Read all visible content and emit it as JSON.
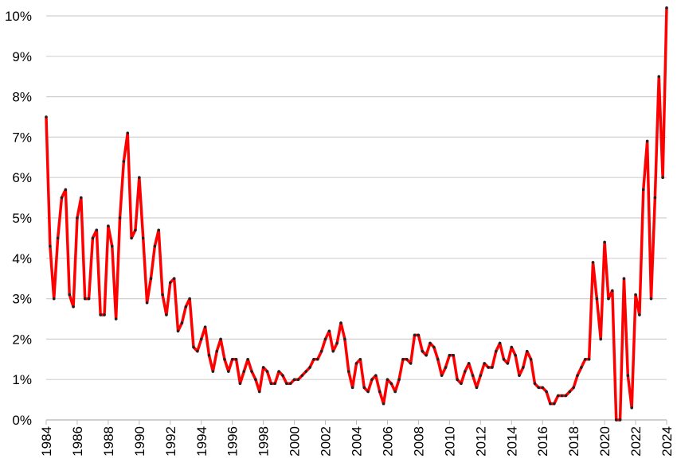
{
  "chart_data": {
    "type": "line",
    "x": [
      1984,
      1984.25,
      1984.5,
      1984.75,
      1985,
      1985.25,
      1985.5,
      1985.75,
      1986,
      1986.25,
      1986.5,
      1986.75,
      1987,
      1987.25,
      1987.5,
      1987.75,
      1988,
      1988.25,
      1988.5,
      1988.75,
      1989,
      1989.25,
      1989.5,
      1989.75,
      1990,
      1990.25,
      1990.5,
      1990.75,
      1991,
      1991.25,
      1991.5,
      1991.75,
      1992,
      1992.25,
      1992.5,
      1992.75,
      1993,
      1993.25,
      1993.5,
      1993.75,
      1994,
      1994.25,
      1994.5,
      1994.75,
      1995,
      1995.25,
      1995.5,
      1995.75,
      1996,
      1996.25,
      1996.5,
      1996.75,
      1997,
      1997.25,
      1997.5,
      1997.75,
      1998,
      1998.25,
      1998.5,
      1998.75,
      1999,
      1999.25,
      1999.5,
      1999.75,
      2000,
      2000.25,
      2000.5,
      2000.75,
      2001,
      2001.25,
      2001.5,
      2001.75,
      2002,
      2002.25,
      2002.5,
      2002.75,
      2003,
      2003.25,
      2003.5,
      2003.75,
      2004,
      2004.25,
      2004.5,
      2004.75,
      2005,
      2005.25,
      2005.5,
      2005.75,
      2006,
      2006.25,
      2006.5,
      2006.75,
      2007,
      2007.25,
      2007.5,
      2007.75,
      2008,
      2008.25,
      2008.5,
      2008.75,
      2009,
      2009.25,
      2009.5,
      2009.75,
      2010,
      2010.25,
      2010.5,
      2010.75,
      2011,
      2011.25,
      2011.5,
      2011.75,
      2012,
      2012.25,
      2012.5,
      2012.75,
      2013,
      2013.25,
      2013.5,
      2013.75,
      2014,
      2014.25,
      2014.5,
      2014.75,
      2015,
      2015.25,
      2015.5,
      2015.75,
      2016,
      2016.25,
      2016.5,
      2016.75,
      2017,
      2017.25,
      2017.5,
      2017.75,
      2018,
      2018.25,
      2018.5,
      2018.75,
      2019,
      2019.25,
      2019.5,
      2019.75,
      2020,
      2020.25,
      2020.5,
      2020.75,
      2021,
      2021.25,
      2021.5,
      2021.75,
      2022,
      2022.25,
      2022.5,
      2022.75,
      2023,
      2023.25,
      2023.5,
      2023.75,
      2024
    ],
    "series": [
      {
        "color": "#ff0000",
        "marker_color": "#222222",
        "values": [
          7.5,
          4.3,
          3.0,
          4.5,
          5.5,
          5.7,
          3.1,
          2.8,
          5.0,
          5.5,
          3.0,
          3.0,
          4.5,
          4.7,
          2.6,
          2.6,
          4.8,
          4.3,
          2.5,
          5.0,
          6.4,
          7.1,
          4.5,
          4.7,
          6.0,
          4.5,
          2.9,
          3.5,
          4.3,
          4.7,
          3.1,
          2.6,
          3.4,
          3.5,
          2.2,
          2.4,
          2.8,
          3.0,
          1.8,
          1.7,
          2.0,
          2.3,
          1.6,
          1.2,
          1.7,
          2.0,
          1.5,
          1.2,
          1.5,
          1.5,
          0.9,
          1.2,
          1.5,
          1.2,
          1.0,
          0.7,
          1.3,
          1.2,
          0.9,
          0.9,
          1.2,
          1.1,
          0.9,
          0.9,
          1.0,
          1.0,
          1.1,
          1.2,
          1.3,
          1.5,
          1.5,
          1.7,
          2.0,
          2.2,
          1.7,
          1.9,
          2.4,
          2.0,
          1.2,
          0.8,
          1.4,
          1.5,
          0.8,
          0.7,
          1.0,
          1.1,
          0.7,
          0.4,
          1.0,
          0.9,
          0.7,
          1.0,
          1.5,
          1.5,
          1.4,
          2.1,
          2.1,
          1.7,
          1.6,
          1.9,
          1.8,
          1.5,
          1.1,
          1.3,
          1.6,
          1.6,
          1.0,
          0.9,
          1.2,
          1.4,
          1.1,
          0.8,
          1.1,
          1.4,
          1.3,
          1.3,
          1.7,
          1.9,
          1.5,
          1.4,
          1.8,
          1.6,
          1.1,
          1.3,
          1.7,
          1.5,
          0.9,
          0.8,
          0.8,
          0.7,
          0.4,
          0.4,
          0.6,
          0.6,
          0.6,
          0.7,
          0.8,
          1.1,
          1.3,
          1.5,
          1.5,
          3.9,
          3.0,
          2.0,
          4.4,
          3.0,
          3.2,
          0.0,
          0.0,
          3.5,
          1.1,
          0.3,
          3.1,
          2.6,
          5.7,
          6.9,
          3.0,
          5.5,
          8.5,
          6.0,
          10.2
        ]
      }
    ],
    "xlim": [
      1984,
      2024
    ],
    "xticks": [
      1984,
      1986,
      1988,
      1990,
      1992,
      1994,
      1996,
      1998,
      2000,
      2002,
      2004,
      2006,
      2008,
      2010,
      2012,
      2014,
      2016,
      2018,
      2020,
      2022,
      2024
    ],
    "ylim": [
      0,
      10
    ],
    "yticks": [
      {
        "value": 0,
        "label": "0%"
      },
      {
        "value": 1,
        "label": "1%"
      },
      {
        "value": 2,
        "label": "2%"
      },
      {
        "value": 3,
        "label": "3%"
      },
      {
        "value": 4,
        "label": "4%"
      },
      {
        "value": 5,
        "label": "5%"
      },
      {
        "value": 6,
        "label": "6%"
      },
      {
        "value": 7,
        "label": "7%"
      },
      {
        "value": 8,
        "label": "8%"
      },
      {
        "value": 9,
        "label": "9%"
      },
      {
        "value": 10,
        "label": "10%"
      }
    ],
    "grid": true
  }
}
